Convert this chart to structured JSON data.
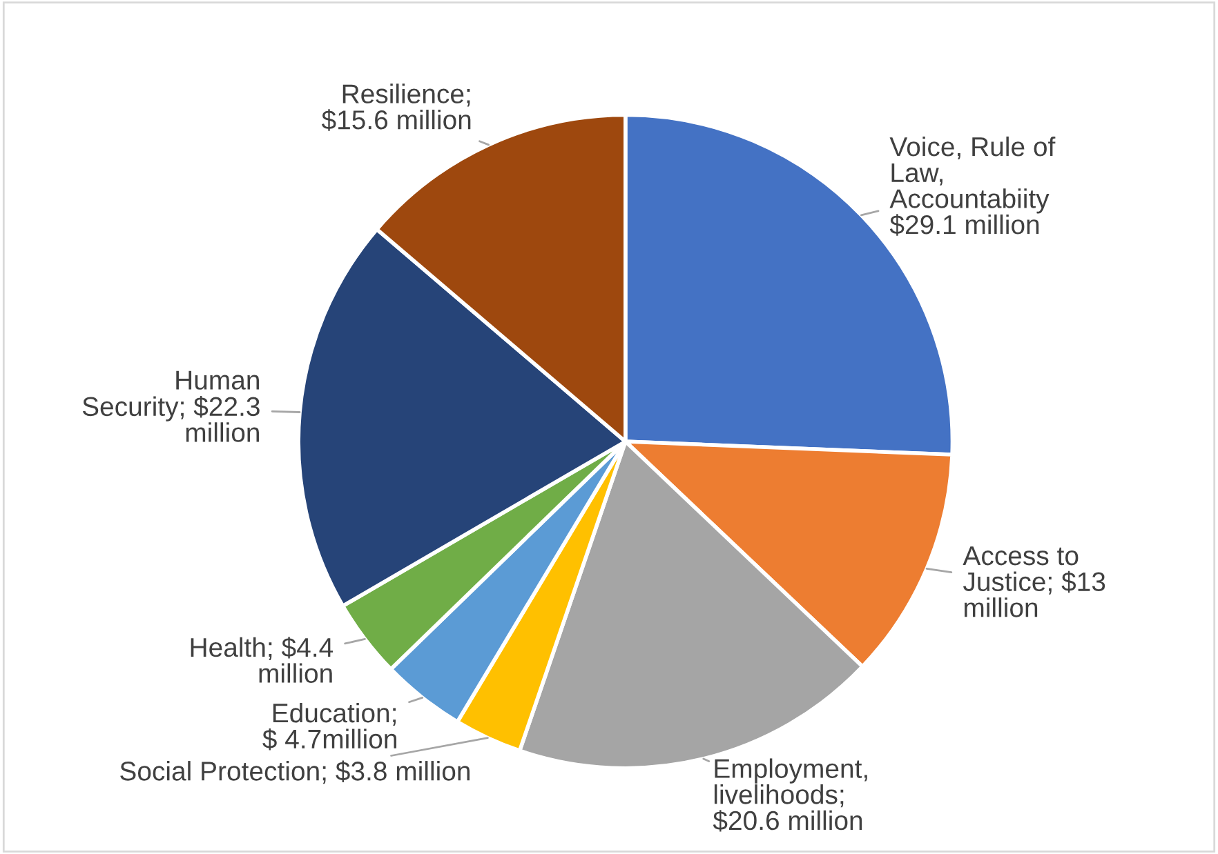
{
  "chart_data": {
    "type": "pie",
    "categories": [
      "Voice, Rule of\nLaw,\nAccountabiity\n$29.1 million",
      "Access to\nJustice; $13\nmillion",
      "Employment,\nlivelihoods;\n$20.6 million",
      "Social Protection; $3.8 million",
      "Education;\n$ 4.7million",
      "Health; $4.4\nmillion",
      "Human\nSecurity; $22.3\nmillion",
      "Resilience;\n$15.6 million"
    ],
    "values": [
      29.1,
      13,
      20.6,
      3.8,
      4.7,
      4.4,
      22.3,
      15.6
    ],
    "colors": [
      "#4472c4",
      "#ed7d31",
      "#a5a5a5",
      "#ffc000",
      "#5b9bd5",
      "#70ad47",
      "#264478",
      "#9e480e"
    ],
    "legend": false
  }
}
